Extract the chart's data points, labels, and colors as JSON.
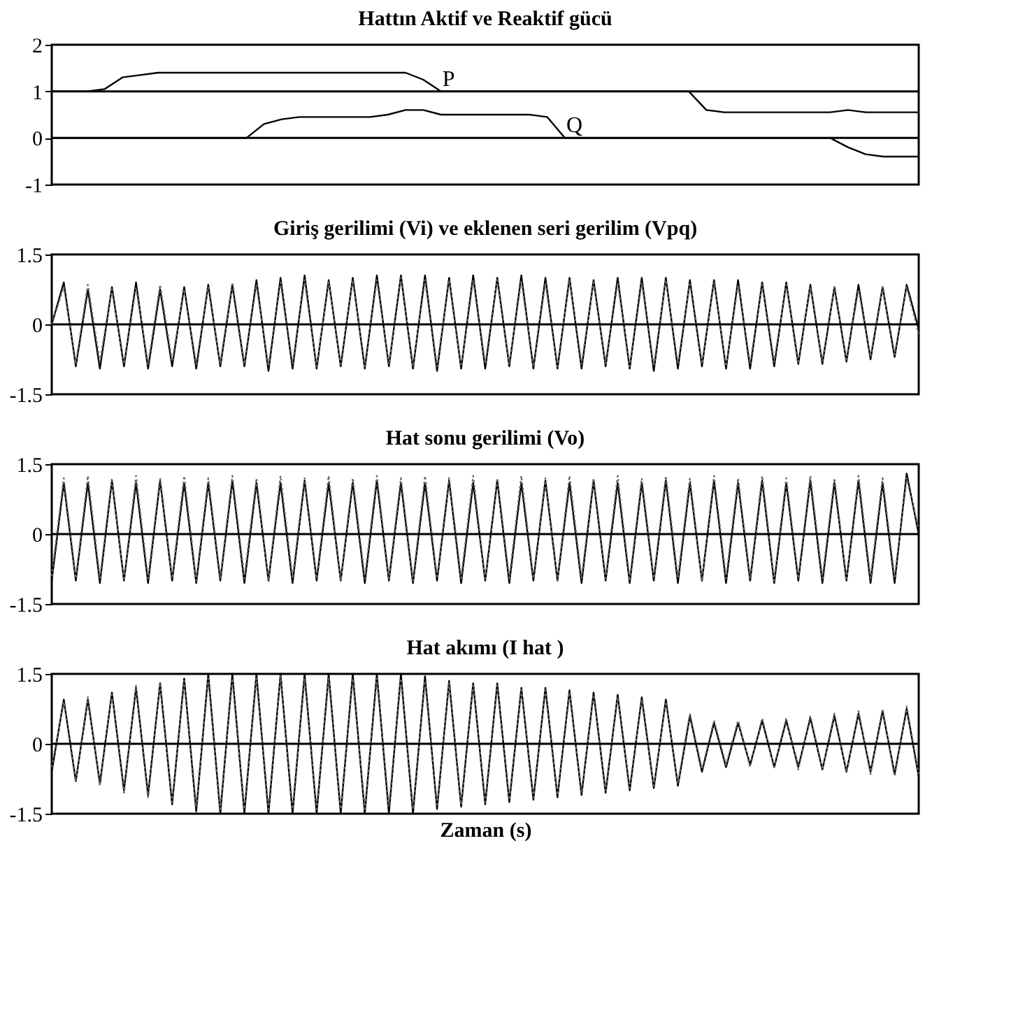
{
  "chart_data": [
    {
      "type": "line",
      "title": "Hattın Aktif ve Reaktif gücü",
      "ylim": [
        -1,
        2
      ],
      "yticks": [
        -1,
        0,
        1,
        2
      ],
      "grid": false,
      "tick_labels": "y",
      "categories": [
        null,
        null,
        null,
        null,
        null,
        null,
        null,
        null,
        null,
        null,
        null,
        null,
        null,
        null,
        null,
        null,
        null,
        null,
        null,
        null,
        null,
        null,
        null,
        null,
        null,
        null,
        null,
        null,
        null,
        null,
        null,
        null,
        null,
        null,
        null,
        null,
        null,
        null,
        null,
        null,
        null,
        null,
        null,
        null,
        null,
        null,
        null,
        null,
        null,
        null
      ],
      "ref_lines": [
        {
          "axis": "y",
          "value": 1
        },
        {
          "axis": "y",
          "value": 0
        }
      ],
      "series": [
        {
          "name": "P",
          "color": "#000000",
          "line_style": "solid",
          "values": [
            1,
            1,
            1,
            1.05,
            1.3,
            1.35,
            1.4,
            1.4,
            1.4,
            1.4,
            1.4,
            1.4,
            1.4,
            1.4,
            1.4,
            1.4,
            1.4,
            1.4,
            1.4,
            1.4,
            1.4,
            1.25,
            1,
            1,
            1,
            1,
            1,
            1,
            1,
            1,
            1,
            1,
            1,
            1,
            1,
            1,
            1,
            0.6,
            0.55,
            0.55,
            0.55,
            0.55,
            0.55,
            0.55,
            0.55,
            0.6,
            0.55,
            0.55,
            0.55,
            0.55
          ]
        },
        {
          "name": "Q",
          "color": "#000000",
          "line_style": "solid",
          "values": [
            0,
            0,
            0,
            0,
            0,
            0,
            0,
            0,
            0,
            0,
            0,
            0,
            0.3,
            0.4,
            0.45,
            0.45,
            0.45,
            0.45,
            0.45,
            0.5,
            0.6,
            0.6,
            0.5,
            0.5,
            0.5,
            0.5,
            0.5,
            0.5,
            0.45,
            0,
            0,
            0,
            0,
            0,
            0,
            0,
            0,
            0,
            0,
            0,
            0,
            0,
            0,
            0,
            0,
            -0.2,
            -0.35,
            -0.4,
            -0.4,
            -0.4
          ]
        }
      ]
    },
    {
      "type": "line",
      "title": "Giriş gerilimi (Vi) ve eklenen seri gerilim (Vpq)",
      "ylim": [
        -1.5,
        1.5
      ],
      "yticks": [
        -1.5,
        0,
        1.5
      ],
      "grid": false,
      "tick_labels": "y",
      "categories": [
        null,
        null,
        null,
        null,
        null,
        null,
        null,
        null,
        null,
        null,
        null,
        null,
        null,
        null,
        null,
        null,
        null,
        null,
        null,
        null,
        null,
        null,
        null,
        null,
        null,
        null,
        null,
        null,
        null,
        null,
        null,
        null,
        null,
        null,
        null,
        null,
        null,
        null,
        null,
        null,
        null,
        null,
        null,
        null,
        null,
        null,
        null,
        null,
        null,
        null,
        null,
        null,
        null,
        null,
        null,
        null,
        null,
        null,
        null,
        null,
        null,
        null,
        null,
        null,
        null,
        null,
        null,
        null,
        null,
        null,
        null,
        null,
        null
      ],
      "ref_lines": [
        {
          "axis": "y",
          "value": 0
        }
      ],
      "series": [
        {
          "color": "#000000",
          "line_style": "solid",
          "values": [
            0,
            0.9,
            -0.9,
            0.75,
            -0.95,
            0.8,
            -0.9,
            0.9,
            -0.95,
            0.75,
            -0.9,
            0.8,
            -0.95,
            0.85,
            -0.9,
            0.85,
            -0.9,
            0.95,
            -1,
            1,
            -0.95,
            1.05,
            -0.95,
            0.95,
            -0.9,
            1,
            -0.95,
            1.05,
            -0.9,
            1.05,
            -0.95,
            1.05,
            -1,
            1,
            -0.95,
            1.05,
            -0.95,
            1,
            -0.9,
            1.05,
            -0.95,
            1,
            -0.95,
            1,
            -0.95,
            0.95,
            -0.9,
            1,
            -0.95,
            1,
            -1,
            1,
            -0.95,
            0.95,
            -0.9,
            0.95,
            -0.95,
            0.95,
            -0.95,
            0.9,
            -0.9,
            0.9,
            -0.85,
            0.85,
            -0.85,
            0.8,
            -0.8,
            0.85,
            -0.75,
            0.8,
            -0.7,
            0.85,
            -0.1
          ]
        },
        {
          "color": "#666666",
          "line_style": "dotted",
          "values": [
            0,
            0.8,
            -0.85,
            0.85,
            -0.8,
            0.75,
            -0.85,
            0.8,
            -0.85,
            0.85,
            -0.8,
            0.75,
            -0.85,
            0.8,
            -0.85,
            0.9,
            -0.85,
            0.85,
            -0.9,
            0.9,
            -0.85,
            0.95,
            -0.9,
            0.9,
            -0.85,
            0.95,
            -0.9,
            0.95,
            -0.85,
            1,
            -0.9,
            0.95,
            -0.9,
            0.95,
            -0.9,
            0.95,
            -0.85,
            0.95,
            -0.85,
            0.95,
            -0.9,
            0.9,
            -0.9,
            0.95,
            -0.85,
            0.9,
            -0.85,
            0.9,
            -0.9,
            0.9,
            -0.9,
            0.95,
            -0.85,
            0.9,
            -0.85,
            0.9,
            -0.9,
            0.85,
            -0.85,
            0.85,
            -0.8,
            0.85,
            -0.8,
            0.8,
            -0.8,
            0.8,
            -0.75,
            0.75,
            -0.7,
            0.8,
            -0.65,
            0.8,
            -0.2
          ]
        }
      ]
    },
    {
      "type": "line",
      "title": "Hat sonu gerilimi (Vo)",
      "ylim": [
        -1.5,
        1.5
      ],
      "yticks": [
        -1.5,
        0,
        1.5
      ],
      "grid": false,
      "tick_labels": "y",
      "categories": [
        null,
        null,
        null,
        null,
        null,
        null,
        null,
        null,
        null,
        null,
        null,
        null,
        null,
        null,
        null,
        null,
        null,
        null,
        null,
        null,
        null,
        null,
        null,
        null,
        null,
        null,
        null,
        null,
        null,
        null,
        null,
        null,
        null,
        null,
        null,
        null,
        null,
        null,
        null,
        null,
        null,
        null,
        null,
        null,
        null,
        null,
        null,
        null,
        null,
        null,
        null,
        null,
        null,
        null,
        null,
        null,
        null,
        null,
        null,
        null,
        null,
        null,
        null,
        null,
        null,
        null,
        null,
        null,
        null,
        null,
        null,
        null,
        null
      ],
      "ref_lines": [
        {
          "axis": "y",
          "value": 0
        }
      ],
      "series": [
        {
          "color": "#000000",
          "line_style": "solid",
          "values": [
            -1,
            1.1,
            -1,
            1.1,
            -1.05,
            1.15,
            -1,
            1.1,
            -1.05,
            1.15,
            -1,
            1.1,
            -1.05,
            1.1,
            -1,
            1.15,
            -1.05,
            1.1,
            -1,
            1.1,
            -1.05,
            1.15,
            -1,
            1.1,
            -1,
            1.1,
            -1.05,
            1.15,
            -1,
            1.1,
            -1.05,
            1.1,
            -1,
            1.15,
            -1.05,
            1.1,
            -1,
            1.15,
            -1.05,
            1.1,
            -1,
            1.15,
            -1,
            1.1,
            -1.05,
            1.15,
            -1,
            1.1,
            -1.05,
            1.1,
            -1,
            1.15,
            -1.05,
            1.1,
            -1,
            1.15,
            -1.05,
            1.1,
            -1,
            1.15,
            -1.05,
            1.1,
            -1,
            1.15,
            -1.05,
            1.1,
            -1,
            1.15,
            -1.05,
            1.1,
            -1.05,
            1.3,
            0
          ]
        },
        {
          "color": "#666666",
          "line_style": "dotted",
          "values": [
            -0.9,
            1.2,
            -0.95,
            1.25,
            -0.95,
            1.2,
            -1,
            1.25,
            -0.95,
            1.2,
            -0.95,
            1.25,
            -1,
            1.2,
            -0.95,
            1.25,
            -0.95,
            1.2,
            -1,
            1.25,
            -0.95,
            1.2,
            -0.95,
            1.25,
            -1,
            1.2,
            -0.95,
            1.25,
            -0.95,
            1.2,
            -1,
            1.25,
            -0.95,
            1.2,
            -0.95,
            1.25,
            -1,
            1.2,
            -0.95,
            1.25,
            -0.95,
            1.2,
            -1,
            1.25,
            -0.95,
            1.2,
            -0.95,
            1.25,
            -1,
            1.2,
            -0.95,
            1.25,
            -0.95,
            1.2,
            -1,
            1.25,
            -0.95,
            1.2,
            -0.95,
            1.25,
            -1,
            1.2,
            -0.95,
            1.25,
            -0.95,
            1.2,
            -1,
            1.25,
            -0.95,
            1.2,
            -0.95,
            1.2,
            0.1
          ]
        }
      ]
    },
    {
      "type": "line",
      "title": "Hat akımı (I hat )",
      "xlabel": "Zaman (s)",
      "ylim": [
        -1.5,
        1.5
      ],
      "yticks": [
        -1.5,
        0,
        1.5
      ],
      "grid": false,
      "tick_labels": "y",
      "categories": [
        null,
        null,
        null,
        null,
        null,
        null,
        null,
        null,
        null,
        null,
        null,
        null,
        null,
        null,
        null,
        null,
        null,
        null,
        null,
        null,
        null,
        null,
        null,
        null,
        null,
        null,
        null,
        null,
        null,
        null,
        null,
        null,
        null,
        null,
        null,
        null,
        null,
        null,
        null,
        null,
        null,
        null,
        null,
        null,
        null,
        null,
        null,
        null,
        null,
        null,
        null,
        null,
        null,
        null,
        null,
        null,
        null,
        null,
        null,
        null,
        null,
        null,
        null,
        null,
        null,
        null,
        null,
        null,
        null,
        null,
        null,
        null,
        null
      ],
      "ref_lines": [
        {
          "axis": "y",
          "value": 0
        }
      ],
      "series": [
        {
          "color": "#000000",
          "line_style": "solid",
          "values": [
            -0.6,
            0.95,
            -0.8,
            0.95,
            -0.85,
            1.1,
            -1,
            1.2,
            -1.1,
            1.3,
            -1.3,
            1.4,
            -1.45,
            1.5,
            -1.5,
            1.5,
            -1.5,
            1.5,
            -1.5,
            1.5,
            -1.5,
            1.5,
            -1.5,
            1.5,
            -1.5,
            1.5,
            -1.5,
            1.5,
            -1.5,
            1.5,
            -1.5,
            1.45,
            -1.4,
            1.35,
            -1.35,
            1.3,
            -1.3,
            1.3,
            -1.25,
            1.2,
            -1.2,
            1.2,
            -1.15,
            1.15,
            -1.1,
            1.1,
            -1.05,
            1.05,
            -1,
            1,
            -0.95,
            0.95,
            -0.9,
            0.6,
            -0.6,
            0.45,
            -0.5,
            0.45,
            -0.45,
            0.5,
            -0.5,
            0.5,
            -0.5,
            0.55,
            -0.55,
            0.6,
            -0.6,
            0.65,
            -0.6,
            0.7,
            -0.65,
            0.75,
            -0.7
          ]
        },
        {
          "color": "#666666",
          "line_style": "dotted",
          "values": [
            -0.5,
            0.9,
            -0.8,
            1,
            -0.9,
            1.1,
            -1.05,
            1.25,
            -1.15,
            1.3,
            -1.25,
            1.35,
            -1.35,
            1.4,
            -1.4,
            1.4,
            -1.4,
            1.4,
            -1.4,
            1.45,
            -1.4,
            1.4,
            -1.4,
            1.4,
            -1.4,
            1.4,
            -1.4,
            1.4,
            -1.35,
            1.4,
            -1.4,
            1.35,
            -1.35,
            1.3,
            -1.3,
            1.25,
            -1.25,
            1.25,
            -1.2,
            1.2,
            -1.15,
            1.15,
            -1.1,
            1.1,
            -1.05,
            1.05,
            -1,
            1,
            -0.95,
            0.95,
            -0.9,
            0.9,
            -0.85,
            0.65,
            -0.55,
            0.5,
            -0.45,
            0.5,
            -0.5,
            0.55,
            -0.5,
            0.55,
            -0.55,
            0.6,
            -0.55,
            0.65,
            -0.6,
            0.7,
            -0.65,
            0.75,
            -0.7,
            0.8,
            -0.65
          ]
        }
      ]
    }
  ]
}
